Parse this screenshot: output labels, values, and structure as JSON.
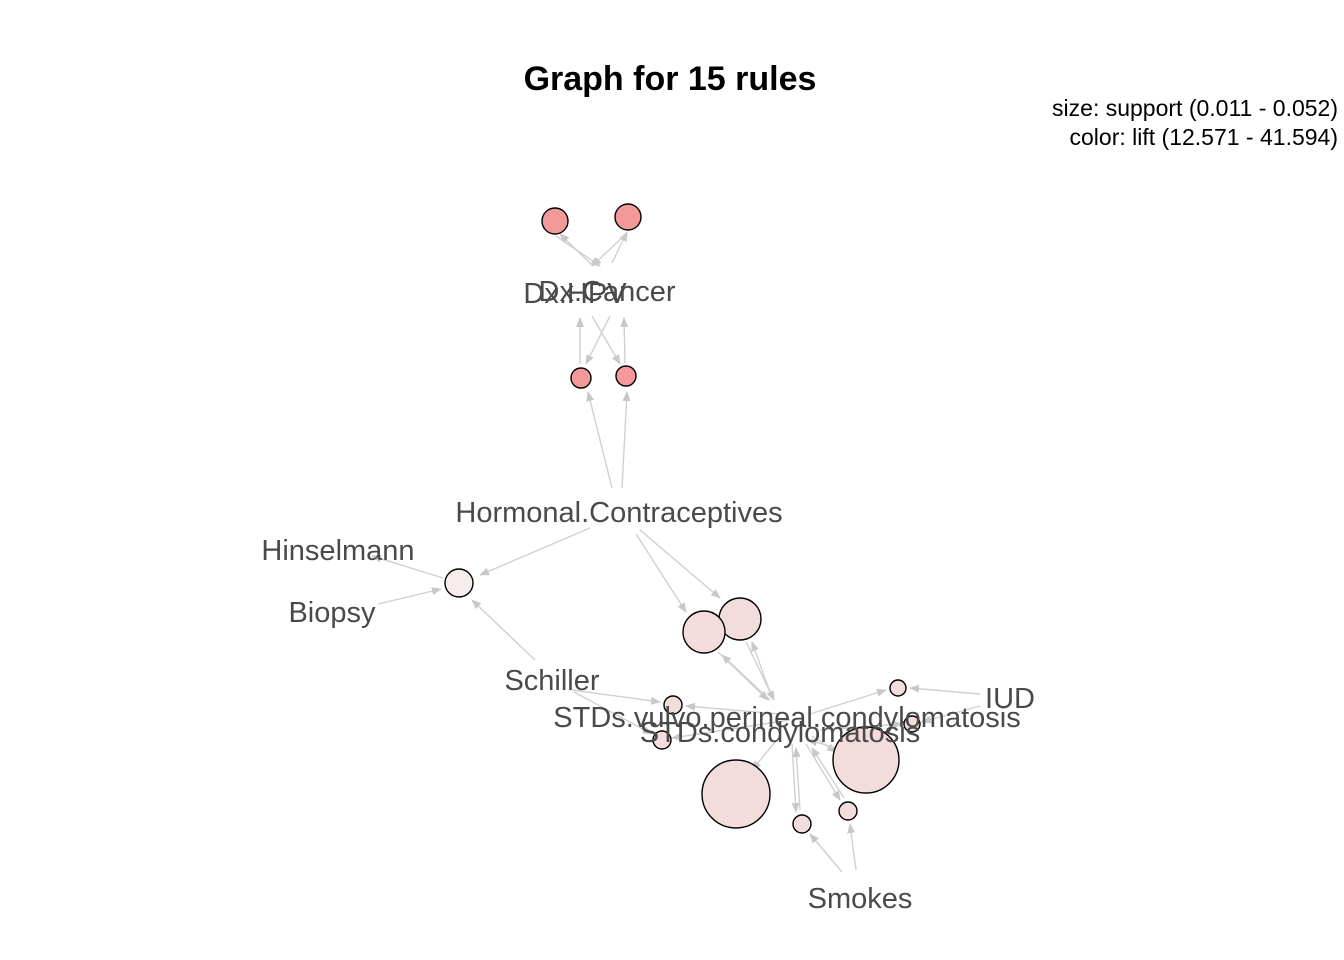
{
  "title": "Graph for 15 rules",
  "legend": {
    "size": "size: support (0.011 - 0.052)",
    "color": "color: lift (12.571 - 41.594)"
  },
  "colors": {
    "high_lift": "#f4999a",
    "mid_lift": "#f3dcdc",
    "low_lift": "#f6ecec",
    "edge": "#d0d0d0",
    "label": "#4a4a4a"
  },
  "items": [
    {
      "id": "dxcancer",
      "label": "Dx.Cancer"
    },
    {
      "id": "dxhpv",
      "label": "Dx.HPV"
    },
    {
      "id": "hormonal",
      "label": "Hormonal.Contraceptives"
    },
    {
      "id": "hinselmann",
      "label": "Hinselmann"
    },
    {
      "id": "biopsy",
      "label": "Biopsy"
    },
    {
      "id": "schiller",
      "label": "Schiller"
    },
    {
      "id": "iud",
      "label": "IUD"
    },
    {
      "id": "stds_vulvo",
      "label": "STDs.vulvo.perineal.condylomatosis"
    },
    {
      "id": "stds_condy",
      "label": "STDs.condylomatosis"
    },
    {
      "id": "smokes",
      "label": "Smokes"
    }
  ]
}
